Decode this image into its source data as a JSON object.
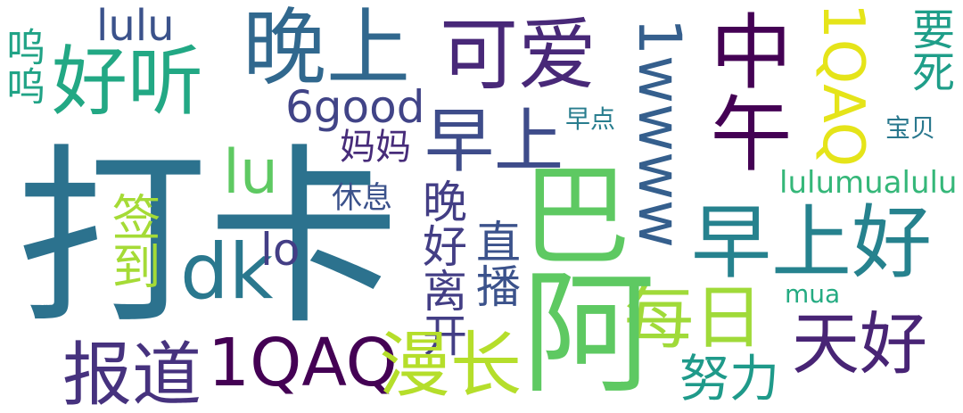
{
  "words": [
    {
      "text": "打卡",
      "color": "#2c728e",
      "orientation": "horizontal"
    },
    {
      "text": "晚上",
      "color": "#31688e",
      "orientation": "horizontal"
    },
    {
      "text": "可爱",
      "color": "#482878",
      "orientation": "horizontal"
    },
    {
      "text": "好听",
      "color": "#22a884",
      "orientation": "horizontal"
    },
    {
      "text": "中午",
      "color": "#440154",
      "orientation": "vertical"
    },
    {
      "text": "1QAQ",
      "color": "#e5e419",
      "orientation": "vertical"
    },
    {
      "text": "要死",
      "color": "#1f9e89",
      "orientation": "vertical"
    },
    {
      "text": "lulu",
      "color": "#3b528b",
      "orientation": "horizontal"
    },
    {
      "text": "呜呜",
      "color": "#20a386",
      "orientation": "vertical"
    },
    {
      "text": "6good",
      "color": "#414487",
      "orientation": "horizontal"
    },
    {
      "text": "早上",
      "color": "#3e4c8a",
      "orientation": "horizontal"
    },
    {
      "text": "1wwww",
      "color": "#355f8d",
      "orientation": "vertical"
    },
    {
      "text": "早点",
      "color": "#287d8e",
      "orientation": "horizontal"
    },
    {
      "text": "宝贝",
      "color": "#2a788e",
      "orientation": "horizontal"
    },
    {
      "text": "妈妈",
      "color": "#472c7a",
      "orientation": "horizontal"
    },
    {
      "text": "lu",
      "color": "#5ec962",
      "orientation": "horizontal"
    },
    {
      "text": "lulumualulu",
      "color": "#35b779",
      "orientation": "horizontal"
    },
    {
      "text": "休息",
      "color": "#3b528b",
      "orientation": "horizontal"
    },
    {
      "text": "签到",
      "color": "#a5db36",
      "orientation": "vertical"
    },
    {
      "text": "晚好离开",
      "color": "#433e85",
      "orientation": "vertical"
    },
    {
      "text": "直播",
      "color": "#3b528b",
      "orientation": "vertical"
    },
    {
      "text": "巴",
      "color": "#5ec962",
      "orientation": "horizontal"
    },
    {
      "text": "早上好",
      "color": "#26828e",
      "orientation": "horizontal"
    },
    {
      "text": "dk",
      "color": "#2a788e",
      "orientation": "horizontal"
    },
    {
      "text": "lo",
      "color": "#433e85",
      "orientation": "horizontal"
    },
    {
      "text": "mua",
      "color": "#25ab82",
      "orientation": "horizontal"
    },
    {
      "text": "每日",
      "color": "#a0da39",
      "orientation": "horizontal"
    },
    {
      "text": "阿",
      "color": "#5ec962",
      "orientation": "horizontal"
    },
    {
      "text": "天好",
      "color": "#482475",
      "orientation": "horizontal"
    },
    {
      "text": "报道",
      "color": "#46327e",
      "orientation": "horizontal"
    },
    {
      "text": "1QAQ",
      "color": "#440154",
      "orientation": "horizontal"
    },
    {
      "text": "漫长",
      "color": "#b5de2b",
      "orientation": "horizontal"
    },
    {
      "text": "努力",
      "color": "#1f9a8a",
      "orientation": "horizontal"
    }
  ]
}
